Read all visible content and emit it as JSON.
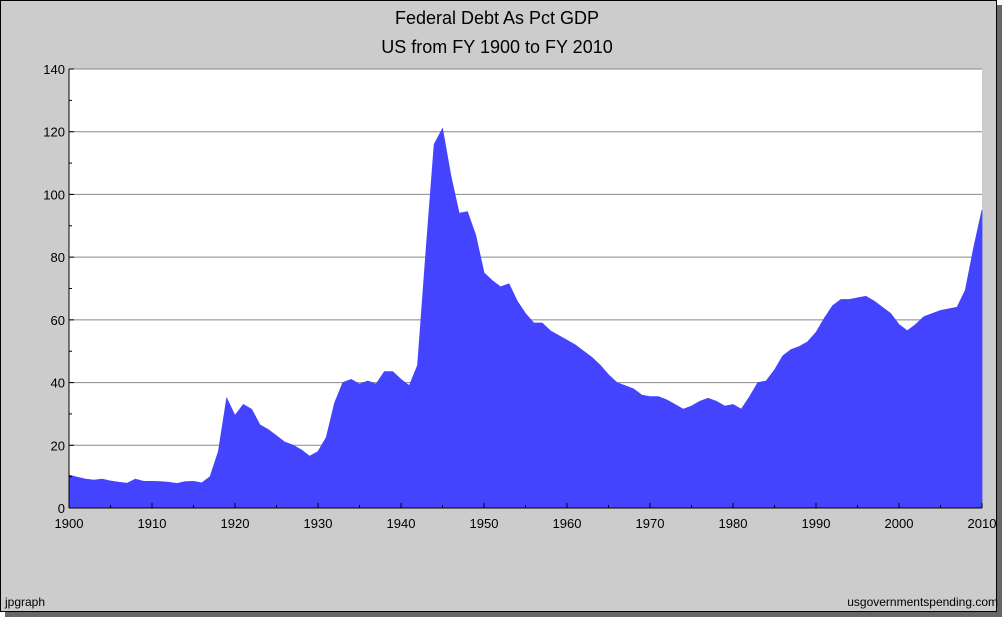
{
  "chart_data": {
    "type": "area",
    "title": "Federal Debt As Pct GDP",
    "subtitle": "US from FY 1900 to FY 2010",
    "xlabel": "",
    "ylabel": "",
    "xlim": [
      1900,
      2010
    ],
    "ylim": [
      0,
      140
    ],
    "x_ticks": [
      1900,
      1910,
      1920,
      1930,
      1940,
      1950,
      1960,
      1970,
      1980,
      1990,
      2000,
      2010
    ],
    "y_ticks": [
      0,
      20,
      40,
      60,
      80,
      100,
      120,
      140
    ],
    "grid": "horizontal",
    "legend": "none",
    "fill_color": "#4444ff",
    "plot_background": "#ffffff",
    "frame_background": "#cccccc",
    "x": [
      1900,
      1901,
      1902,
      1903,
      1904,
      1905,
      1906,
      1907,
      1908,
      1909,
      1910,
      1911,
      1912,
      1913,
      1914,
      1915,
      1916,
      1917,
      1918,
      1919,
      1920,
      1921,
      1922,
      1923,
      1924,
      1925,
      1926,
      1927,
      1928,
      1929,
      1930,
      1931,
      1932,
      1933,
      1934,
      1935,
      1936,
      1937,
      1938,
      1939,
      1940,
      1941,
      1942,
      1943,
      1944,
      1945,
      1946,
      1947,
      1948,
      1949,
      1950,
      1951,
      1952,
      1953,
      1954,
      1955,
      1956,
      1957,
      1958,
      1959,
      1960,
      1961,
      1962,
      1963,
      1964,
      1965,
      1966,
      1967,
      1968,
      1969,
      1970,
      1971,
      1972,
      1973,
      1974,
      1975,
      1976,
      1977,
      1978,
      1979,
      1980,
      1981,
      1982,
      1983,
      1984,
      1985,
      1986,
      1987,
      1988,
      1989,
      1990,
      1991,
      1992,
      1993,
      1994,
      1995,
      1996,
      1997,
      1998,
      1999,
      2000,
      2001,
      2002,
      2003,
      2004,
      2005,
      2006,
      2007,
      2008,
      2009,
      2010
    ],
    "values": [
      10.5,
      9.8,
      9.2,
      8.9,
      9.2,
      8.6,
      8.2,
      7.9,
      9.2,
      8.5,
      8.5,
      8.4,
      8.2,
      7.8,
      8.4,
      8.5,
      8.0,
      10.0,
      18.0,
      35.0,
      29.5,
      33.0,
      31.5,
      26.5,
      25.0,
      23.0,
      21.0,
      20.0,
      18.5,
      16.5,
      18.0,
      22.5,
      33.5,
      40.0,
      41.0,
      39.5,
      40.5,
      39.5,
      43.5,
      43.5,
      41.0,
      39.0,
      45.5,
      81.5,
      116.0,
      121.0,
      106.0,
      94.0,
      94.5,
      87.0,
      75.0,
      72.5,
      70.5,
      71.5,
      66.0,
      62.0,
      59.0,
      59.0,
      56.5,
      55.0,
      53.5,
      52.0,
      50.0,
      48.0,
      45.5,
      42.5,
      40.0,
      39.0,
      38.0,
      36.0,
      35.5,
      35.5,
      34.5,
      33.0,
      31.5,
      32.5,
      34.0,
      35.0,
      34.0,
      32.5,
      33.0,
      31.5,
      35.5,
      40.0,
      40.5,
      44.0,
      48.5,
      50.5,
      51.5,
      53.0,
      56.0,
      60.5,
      64.5,
      66.5,
      66.5,
      67.0,
      67.5,
      66.0,
      64.0,
      62.0,
      58.5,
      56.5,
      58.5,
      61.0,
      62.0,
      63.0,
      63.5,
      64.0,
      69.5,
      83.0,
      95.0
    ]
  },
  "footer": {
    "left": "jpgraph",
    "right": "usgovernmentspending.com"
  }
}
